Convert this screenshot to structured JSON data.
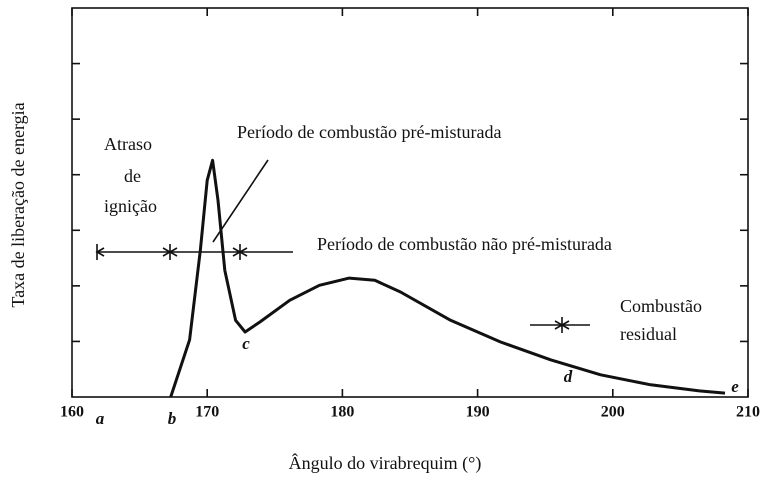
{
  "chart_data": {
    "type": "line",
    "x_label": "Ângulo do virabrequim (°)",
    "y_label": "Taxa de liberação de energia",
    "xlim": [
      160,
      210
    ],
    "xticks": [
      160,
      170,
      180,
      190,
      200,
      210
    ],
    "ylim": [
      0,
      7
    ],
    "yticks": [
      1,
      2,
      3,
      4,
      5,
      6
    ],
    "color": "#111111",
    "x": [
      167.3,
      168.7,
      169.5,
      170.0,
      170.4,
      170.8,
      171.3,
      172.1,
      172.8,
      173.9,
      176.1,
      178.3,
      180.5,
      182.4,
      184.3,
      188.0,
      191.7,
      195.4,
      199.1,
      202.8,
      206.4,
      208.3
    ],
    "values": [
      0,
      1.03,
      2.65,
      3.9,
      4.26,
      3.54,
      2.28,
      1.38,
      1.17,
      1.35,
      1.74,
      2.01,
      2.14,
      2.1,
      1.89,
      1.38,
      0.99,
      0.67,
      0.4,
      0.22,
      0.11,
      0.07
    ],
    "annotations": [
      "Período de combustão pré-misturada",
      "Período de combustão não pré-misturada",
      "Atraso",
      "de",
      "ignição",
      "Combustão",
      "residual",
      "a",
      "b",
      "c",
      "d",
      "e"
    ]
  }
}
